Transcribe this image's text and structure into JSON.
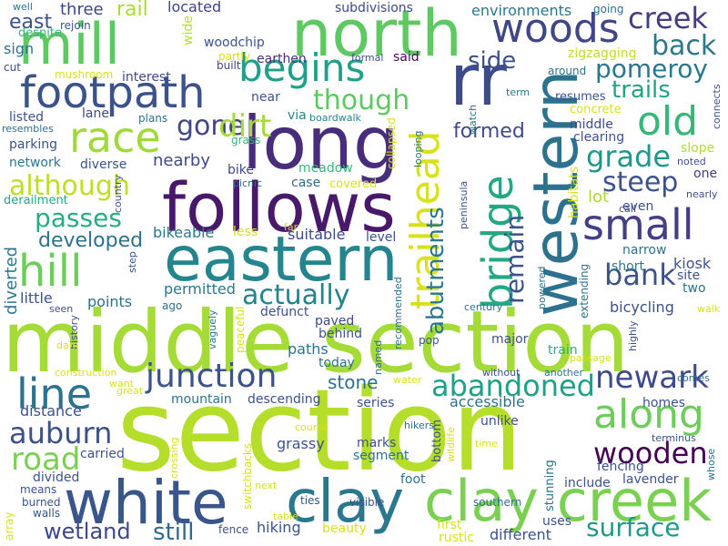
{
  "words": [
    {
      "text": "section",
      "color": "#b5de2b"
    },
    {
      "text": "middle section",
      "color": "#a5db36"
    },
    {
      "text": "long",
      "color": "#472d7b"
    },
    {
      "text": "follows",
      "color": "#48186a"
    },
    {
      "text": "north",
      "color": "#5ec962"
    },
    {
      "text": "eastern",
      "color": "#25858e"
    },
    {
      "text": "white",
      "color": "#39568c"
    },
    {
      "text": "clay",
      "color": "#2a788e"
    },
    {
      "text": "clay creek",
      "color": "#7ad151"
    },
    {
      "text": "western",
      "color": "#2c728e"
    },
    {
      "text": "rr",
      "color": "#3e4a89"
    },
    {
      "text": "mill",
      "color": "#5ec962"
    },
    {
      "text": "footpath",
      "color": "#3b528b"
    },
    {
      "text": "race",
      "color": "#a0da39"
    },
    {
      "text": "hill",
      "color": "#6ccd5a"
    },
    {
      "text": "line",
      "color": "#2c728e"
    },
    {
      "text": "junction",
      "color": "#3b528b"
    },
    {
      "text": "woods",
      "color": "#3f4788"
    },
    {
      "text": "creek",
      "color": "#433e85"
    },
    {
      "text": "old",
      "color": "#35b779"
    },
    {
      "text": "small",
      "color": "#433e85"
    },
    {
      "text": "begins",
      "color": "#1fa088"
    },
    {
      "text": "along",
      "color": "#6ccd5a"
    },
    {
      "text": "trailhead",
      "color": "#d8e219"
    },
    {
      "text": "bridge",
      "color": "#22a884"
    },
    {
      "text": "abandoned",
      "color": "#1fa088"
    },
    {
      "text": "newark",
      "color": "#3e4a89"
    },
    {
      "text": "wooden",
      "color": "#440154"
    },
    {
      "text": "auburn",
      "color": "#3b528b"
    },
    {
      "text": "road",
      "color": "#7ad151"
    },
    {
      "text": "surface",
      "color": "#1f9a8a"
    },
    {
      "text": "back",
      "color": "#2a788e"
    },
    {
      "text": "pomeroy",
      "color": "#2a788e"
    },
    {
      "text": "trails",
      "color": "#20a386"
    },
    {
      "text": "grade",
      "color": "#1f988b"
    },
    {
      "text": "steep",
      "color": "#3b528b"
    },
    {
      "text": "bank",
      "color": "#3b528b"
    },
    {
      "text": "passes",
      "color": "#26ad81"
    },
    {
      "text": "although",
      "color": "#bddf26"
    },
    {
      "text": "actually",
      "color": "#26828e"
    },
    {
      "text": "gone",
      "color": "#404688"
    },
    {
      "text": "dirt",
      "color": "#a5db36"
    },
    {
      "text": "side",
      "color": "#3b528b"
    },
    {
      "text": "though",
      "color": "#5ec962"
    },
    {
      "text": "formed",
      "color": "#3e4a89"
    },
    {
      "text": "remain",
      "color": "#3b528b"
    },
    {
      "text": "abutments",
      "color": "#2a788e"
    },
    {
      "text": "developed",
      "color": "#2c728e"
    },
    {
      "text": "stone",
      "color": "#2c728e"
    },
    {
      "text": "still",
      "color": "#31688e"
    },
    {
      "text": "wetland",
      "color": "#3f4788"
    },
    {
      "text": "east",
      "color": "#3b528b"
    },
    {
      "text": "three",
      "color": "#3f4788"
    },
    {
      "text": "rail",
      "color": "#aadc32"
    },
    {
      "text": "located",
      "color": "#414487"
    },
    {
      "text": "subdivisions",
      "color": "#3e4a89"
    },
    {
      "text": "environments",
      "color": "#2a788e"
    },
    {
      "text": "going",
      "color": "#2c728e"
    },
    {
      "text": "despite",
      "color": "#35b779"
    },
    {
      "text": "rejoin",
      "color": "#3b528b"
    },
    {
      "text": "sign",
      "color": "#2c728e"
    },
    {
      "text": "wide",
      "color": "#b5de2b"
    },
    {
      "text": "woodchip",
      "color": "#3b528b"
    },
    {
      "text": "said",
      "color": "#46085c"
    },
    {
      "text": "zigzagging",
      "color": "#bddf26"
    },
    {
      "text": "cut",
      "color": "#3e4a89"
    },
    {
      "text": "mushroom",
      "color": "#d8e219"
    },
    {
      "text": "interest",
      "color": "#3e4a89"
    },
    {
      "text": "partly",
      "color": "#d8e219"
    },
    {
      "text": "built",
      "color": "#3f4788"
    },
    {
      "text": "earthen",
      "color": "#472d7b"
    },
    {
      "text": "formal",
      "color": "#3b528b"
    },
    {
      "text": "around",
      "color": "#2c728e"
    },
    {
      "text": "term",
      "color": "#2a788e"
    },
    {
      "text": "resumes",
      "color": "#3b528b"
    },
    {
      "text": "connects",
      "color": "#3b528b"
    },
    {
      "text": "concrete",
      "color": "#d8e219"
    },
    {
      "text": "near",
      "color": "#3b528b"
    },
    {
      "text": "lane",
      "color": "#3e4a89"
    },
    {
      "text": "listed",
      "color": "#3b528b"
    },
    {
      "text": "plans",
      "color": "#2c728e"
    },
    {
      "text": "resembles",
      "color": "#2c728e"
    },
    {
      "text": "via",
      "color": "#25858e"
    },
    {
      "text": "boardwalk",
      "color": "#25858e"
    },
    {
      "text": "watch",
      "color": "#2c728e"
    },
    {
      "text": "middle",
      "color": "#3e4a89"
    },
    {
      "text": "clearing",
      "color": "#3b528b"
    },
    {
      "text": "slope",
      "color": "#addc30"
    },
    {
      "text": "noted",
      "color": "#3b528b"
    },
    {
      "text": "parking",
      "color": "#3b528b"
    },
    {
      "text": "grass",
      "color": "#35b779"
    },
    {
      "text": "network",
      "color": "#2a788e"
    },
    {
      "text": "diverse",
      "color": "#3b528b"
    },
    {
      "text": "nearby",
      "color": "#3e4a89"
    },
    {
      "text": "even",
      "color": "#3b528b"
    },
    {
      "text": "one",
      "color": "#443983"
    },
    {
      "text": "bike",
      "color": "#3e4a89"
    },
    {
      "text": "meadow",
      "color": "#35b779"
    },
    {
      "text": "derailment",
      "color": "#22a884"
    },
    {
      "text": "case",
      "color": "#31688e"
    },
    {
      "text": "covered",
      "color": "#d8e219"
    },
    {
      "text": "picnic",
      "color": "#2c728e"
    },
    {
      "text": "lot",
      "color": "#addc30"
    },
    {
      "text": "call",
      "color": "#3e4a89"
    },
    {
      "text": "nearly",
      "color": "#3b528b"
    },
    {
      "text": "less",
      "color": "#d8e219"
    },
    {
      "text": "far",
      "color": "#d8e219"
    },
    {
      "text": "level",
      "color": "#3b528b"
    },
    {
      "text": "bikeable",
      "color": "#2a788e"
    },
    {
      "text": "suitable",
      "color": "#3e4a89"
    },
    {
      "text": "narrow",
      "color": "#2c728e"
    },
    {
      "text": "kiosk",
      "color": "#3b528b"
    },
    {
      "text": "short",
      "color": "#2a788e"
    },
    {
      "text": "site",
      "color": "#3b528b"
    },
    {
      "text": "two",
      "color": "#2c728e"
    },
    {
      "text": "diverted",
      "color": "#2a788e"
    },
    {
      "text": "permitted",
      "color": "#2a788e"
    },
    {
      "text": "little",
      "color": "#3b528b"
    },
    {
      "text": "points",
      "color": "#2c728e"
    },
    {
      "text": "ago",
      "color": "#2c728e"
    },
    {
      "text": "defunct",
      "color": "#3b528b"
    },
    {
      "text": "today",
      "color": "#2c728e"
    },
    {
      "text": "bicycling",
      "color": "#3b528b"
    },
    {
      "text": "walk",
      "color": "#d8e219"
    },
    {
      "text": "seen",
      "color": "#3b528b"
    },
    {
      "text": "paved",
      "color": "#3e4a89"
    },
    {
      "text": "behind",
      "color": "#3b528b"
    },
    {
      "text": "major",
      "color": "#3b528b"
    },
    {
      "text": "train",
      "color": "#26ad81"
    },
    {
      "text": "paths",
      "color": "#2c728e"
    },
    {
      "text": "century",
      "color": "#2c728e"
    },
    {
      "text": "recommended",
      "color": "#2c728e"
    },
    {
      "text": "powered",
      "color": "#2c728e"
    },
    {
      "text": "highly",
      "color": "#3b528b"
    },
    {
      "text": "history",
      "color": "#3b528b"
    },
    {
      "text": "vaguely",
      "color": "#2c728e"
    },
    {
      "text": "peaceful",
      "color": "#d8e219"
    },
    {
      "text": "dam",
      "color": "#d8e219"
    },
    {
      "text": "named",
      "color": "#2c728e"
    },
    {
      "text": "pop",
      "color": "#3b528b"
    },
    {
      "text": "construction",
      "color": "#d8e219"
    },
    {
      "text": "water",
      "color": "#d8e219"
    },
    {
      "text": "without",
      "color": "#3b528b"
    },
    {
      "text": "another",
      "color": "#2c728e"
    },
    {
      "text": "passage",
      "color": "#d8e219"
    },
    {
      "text": "comes",
      "color": "#2c728e"
    },
    {
      "text": "want",
      "color": "#d8e219"
    },
    {
      "text": "great",
      "color": "#d8e219"
    },
    {
      "text": "mountain",
      "color": "#2c728e"
    },
    {
      "text": "descending",
      "color": "#3b528b"
    },
    {
      "text": "accessible",
      "color": "#2c728e"
    },
    {
      "text": "homes",
      "color": "#3b528b"
    },
    {
      "text": "distance",
      "color": "#3b528b"
    },
    {
      "text": "series",
      "color": "#3b528b"
    },
    {
      "text": "unlike",
      "color": "#3b528b"
    },
    {
      "text": "grassy",
      "color": "#3b528b"
    },
    {
      "text": "course",
      "color": "#d8e219"
    },
    {
      "text": "hikers",
      "color": "#2c728e"
    },
    {
      "text": "terminus",
      "color": "#3b528b"
    },
    {
      "text": "fencing",
      "color": "#3b528b"
    },
    {
      "text": "whose",
      "color": "#2c728e"
    },
    {
      "text": "carried",
      "color": "#3b528b"
    },
    {
      "text": "crossing",
      "color": "#d8e219"
    },
    {
      "text": "marks",
      "color": "#3b528b"
    },
    {
      "text": "segment",
      "color": "#2c728e"
    },
    {
      "text": "bottom",
      "color": "#3b528b"
    },
    {
      "text": "wildlife",
      "color": "#d8e219"
    },
    {
      "text": "time",
      "color": "#d8e219"
    },
    {
      "text": "lavender",
      "color": "#3b528b"
    },
    {
      "text": "divided",
      "color": "#3b528b"
    },
    {
      "text": "switchbacks",
      "color": "#d8e219"
    },
    {
      "text": "foot",
      "color": "#2c728e"
    },
    {
      "text": "include",
      "color": "#3b528b"
    },
    {
      "text": "means",
      "color": "#3b528b"
    },
    {
      "text": "array",
      "color": "#d8e219"
    },
    {
      "text": "burned",
      "color": "#3b528b"
    },
    {
      "text": "walls",
      "color": "#3b528b"
    },
    {
      "text": "next",
      "color": "#d8e219"
    },
    {
      "text": "ties",
      "color": "#3b528b"
    },
    {
      "text": "visible",
      "color": "#3b528b"
    },
    {
      "text": "southern",
      "color": "#2c728e"
    },
    {
      "text": "stunning",
      "color": "#2c728e"
    },
    {
      "text": "fence",
      "color": "#3b528b"
    },
    {
      "text": "hiking",
      "color": "#3b528b"
    },
    {
      "text": "table",
      "color": "#d8e219"
    },
    {
      "text": "beauty",
      "color": "#d8e219"
    },
    {
      "text": "first",
      "color": "#d8e219"
    },
    {
      "text": "rustic",
      "color": "#d8e219"
    },
    {
      "text": "different",
      "color": "#3b528b"
    },
    {
      "text": "uses",
      "color": "#3b528b"
    },
    {
      "text": "well",
      "color": "#2c728e"
    },
    {
      "text": "country",
      "color": "#3b528b"
    },
    {
      "text": "step",
      "color": "#3b528b"
    },
    {
      "text": "looping",
      "color": "#2c728e"
    },
    {
      "text": "collapsed",
      "color": "#d8e219"
    },
    {
      "text": "peninsula",
      "color": "#3b528b"
    },
    {
      "text": "habitats",
      "color": "#d8e219"
    },
    {
      "text": "extending",
      "color": "#2c728e"
    }
  ]
}
